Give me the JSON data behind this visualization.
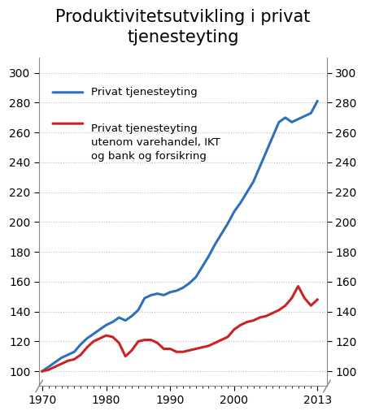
{
  "title": "Produktivitetsutvikling i privat\ntjenesteyting",
  "title_fontsize": 15,
  "legend1": "Privat tjenesteyting",
  "legend2": "Privat tjenesteyting\nutenom varehandel, IKT\nog bank og forsikring",
  "color_blue": "#3070b8",
  "color_red": "#cc2222",
  "ylim": [
    90,
    310
  ],
  "yticks": [
    100,
    120,
    140,
    160,
    180,
    200,
    220,
    240,
    260,
    280,
    300
  ],
  "xlim": [
    1969.5,
    2014.5
  ],
  "xticks": [
    1970,
    1980,
    1990,
    2000,
    2013
  ],
  "xticklabels": [
    "1970",
    "1980",
    "1990",
    "2000",
    "2013"
  ],
  "blue_years": [
    1970,
    1971,
    1972,
    1973,
    1974,
    1975,
    1976,
    1977,
    1978,
    1979,
    1980,
    1981,
    1982,
    1983,
    1984,
    1985,
    1986,
    1987,
    1988,
    1989,
    1990,
    1991,
    1992,
    1993,
    1994,
    1995,
    1996,
    1997,
    1998,
    1999,
    2000,
    2001,
    2002,
    2003,
    2004,
    2005,
    2006,
    2007,
    2008,
    2009,
    2010,
    2011,
    2012,
    2013
  ],
  "blue_values": [
    100,
    103,
    106,
    109,
    111,
    113,
    118,
    122,
    125,
    128,
    131,
    133,
    136,
    134,
    137,
    141,
    149,
    151,
    152,
    151,
    153,
    154,
    156,
    159,
    163,
    170,
    177,
    185,
    192,
    199,
    207,
    213,
    220,
    227,
    237,
    247,
    257,
    267,
    270,
    267,
    269,
    271,
    273,
    281
  ],
  "red_years": [
    1970,
    1971,
    1972,
    1973,
    1974,
    1975,
    1976,
    1977,
    1978,
    1979,
    1980,
    1981,
    1982,
    1983,
    1984,
    1985,
    1986,
    1987,
    1988,
    1989,
    1990,
    1991,
    1992,
    1993,
    1994,
    1995,
    1996,
    1997,
    1998,
    1999,
    2000,
    2001,
    2002,
    2003,
    2004,
    2005,
    2006,
    2007,
    2008,
    2009,
    2010,
    2011,
    2012,
    2013
  ],
  "red_values": [
    100,
    101,
    103,
    105,
    107,
    108,
    111,
    116,
    120,
    122,
    124,
    123,
    119,
    110,
    114,
    120,
    121,
    121,
    119,
    115,
    115,
    113,
    113,
    114,
    115,
    116,
    117,
    119,
    121,
    123,
    128,
    131,
    133,
    134,
    136,
    137,
    139,
    141,
    144,
    149,
    157,
    149,
    144,
    148
  ]
}
